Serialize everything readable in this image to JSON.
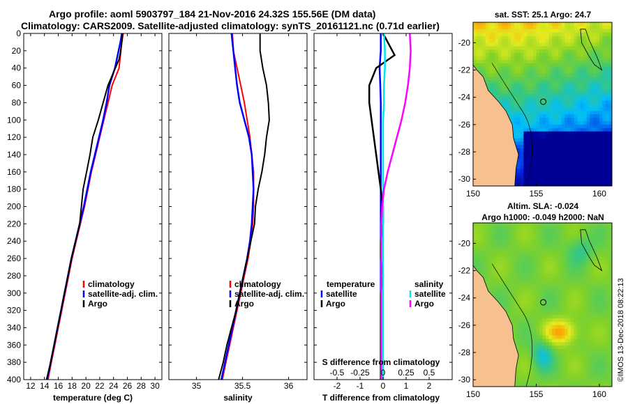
{
  "title_line1": "Argo profile: aoml 5903797_184 21-Nov-2016 24.32S 155.56E (DM data)",
  "title_line2": "Climatology: CARS2009. Satellite-adjusted climatology: synTS_20161121.nc (0.71d earlier)",
  "colors": {
    "climatology": "#ff0000",
    "satellite_adj": "#0000ff",
    "argo": "#000000",
    "sal_satellite": "#00e5ee",
    "sal_argo": "#ff00ff",
    "land": "#f7c08f"
  },
  "chart_data": [
    {
      "type": "line",
      "name": "temperature",
      "xlabel": "temperature (deg C)",
      "ylabel": "",
      "xlim": [
        11,
        31
      ],
      "ylim": [
        400,
        0
      ],
      "xticks": [
        "12",
        "14",
        "16",
        "18",
        "20",
        "22",
        "24",
        "26",
        "28",
        "30"
      ],
      "yticks": [
        "0",
        "20",
        "40",
        "60",
        "80",
        "100",
        "120",
        "140",
        "160",
        "180",
        "200",
        "220",
        "240",
        "260",
        "280",
        "300",
        "320",
        "340",
        "360",
        "380",
        "400"
      ],
      "legend": [
        "climatology",
        "satellite-adj. clim.",
        "Argo"
      ],
      "series": [
        {
          "name": "climatology",
          "x": [
            25.4,
            25.2,
            24.8,
            23.8,
            23.2,
            22.6,
            22.0,
            21.4,
            20.8,
            20.3,
            19.8,
            19.2,
            18.6,
            18.0,
            17.5,
            17.0,
            16.5,
            16.0,
            15.5,
            15.0,
            14.5
          ],
          "y": [
            0,
            10,
            40,
            60,
            80,
            100,
            120,
            140,
            160,
            180,
            200,
            220,
            240,
            260,
            280,
            300,
            320,
            340,
            360,
            380,
            400
          ]
        },
        {
          "name": "satellite-adj. clim.",
          "x": [
            25.2,
            25.0,
            24.2,
            23.4,
            23.0,
            22.5,
            21.9,
            21.3,
            20.7,
            20.2,
            19.7,
            19.1,
            18.5,
            17.9,
            17.4,
            16.9,
            16.4,
            15.9,
            15.4,
            14.9,
            14.4
          ],
          "y": [
            0,
            10,
            40,
            60,
            80,
            100,
            120,
            140,
            160,
            180,
            200,
            220,
            240,
            260,
            280,
            300,
            320,
            340,
            360,
            380,
            400
          ]
        },
        {
          "name": "Argo",
          "x": [
            25.3,
            25.2,
            25.0,
            24.8,
            23.2,
            22.5,
            21.8,
            21.0,
            20.6,
            20.1,
            19.6,
            19.1,
            18.5,
            17.9,
            17.4,
            16.9,
            16.4,
            15.9,
            15.4,
            14.9,
            14.3
          ],
          "y": [
            0,
            10,
            22,
            30,
            60,
            80,
            100,
            120,
            140,
            160,
            180,
            220,
            240,
            260,
            280,
            300,
            320,
            340,
            360,
            380,
            400
          ]
        }
      ]
    },
    {
      "type": "line",
      "name": "salinity",
      "xlabel": "salinity",
      "xlim": [
        34.7,
        36.2
      ],
      "ylim": [
        400,
        0
      ],
      "xticks": [
        "35",
        "35.5",
        "36"
      ],
      "legend": [
        "climatology",
        "satellite-adj. clim.",
        "Argo"
      ],
      "series": [
        {
          "name": "climatology",
          "x": [
            35.39,
            35.4,
            35.44,
            35.48,
            35.52,
            35.55,
            35.58,
            35.6,
            35.62,
            35.62,
            35.62,
            35.61,
            35.59,
            35.56,
            35.52,
            35.48,
            35.44,
            35.4,
            35.36,
            35.32,
            35.28
          ],
          "y": [
            0,
            20,
            40,
            60,
            80,
            100,
            120,
            140,
            160,
            180,
            200,
            220,
            240,
            260,
            280,
            300,
            320,
            340,
            360,
            380,
            400
          ]
        },
        {
          "name": "satellite-adj. clim.",
          "x": [
            35.38,
            35.4,
            35.42,
            35.44,
            35.47,
            35.52,
            35.57,
            35.6,
            35.61,
            35.62,
            35.61,
            35.6,
            35.58,
            35.55,
            35.51,
            35.47,
            35.43,
            35.39,
            35.35,
            35.31,
            35.27
          ],
          "y": [
            0,
            20,
            40,
            60,
            80,
            100,
            120,
            140,
            160,
            180,
            200,
            220,
            240,
            260,
            280,
            300,
            320,
            340,
            360,
            380,
            400
          ]
        },
        {
          "name": "Argo",
          "x": [
            35.69,
            35.69,
            35.72,
            35.76,
            35.78,
            35.79,
            35.76,
            35.74,
            35.71,
            35.67,
            35.64,
            35.63,
            35.59,
            35.55,
            35.51,
            35.47,
            35.43,
            35.38,
            35.33,
            35.29,
            35.24
          ],
          "y": [
            0,
            20,
            40,
            60,
            80,
            100,
            120,
            140,
            160,
            180,
            200,
            220,
            240,
            260,
            280,
            300,
            320,
            340,
            360,
            380,
            400
          ]
        }
      ]
    },
    {
      "type": "line",
      "name": "differences",
      "xlabel": "T difference from climatology",
      "xlabel_s": "S difference from climatology",
      "xlim": [
        -3,
        3
      ],
      "xlim_s": [
        -0.75,
        0.75
      ],
      "ylim": [
        400,
        0
      ],
      "xticks": [
        "-2",
        "-1",
        "0",
        "1",
        "2"
      ],
      "xticks_s": [
        "-0.5",
        "-0.25",
        "0",
        "0.25",
        "0.5"
      ],
      "legend_temperature": {
        "title": "temperature",
        "items": [
          "satellite",
          "Argo"
        ]
      },
      "legend_salinity": {
        "title": "salinity",
        "items": [
          "satellite",
          "Argo"
        ]
      },
      "series": [
        {
          "name": "temperature satellite",
          "x": [
            -0.1,
            -0.1,
            -0.15,
            -0.12,
            -0.1,
            -0.1,
            -0.1,
            -0.1,
            -0.1,
            -0.1,
            -0.1,
            -0.1,
            -0.1,
            -0.1,
            -0.1,
            -0.1,
            -0.1,
            -0.1,
            -0.1,
            -0.1,
            -0.1
          ],
          "y": [
            0,
            20,
            40,
            60,
            80,
            100,
            120,
            140,
            160,
            180,
            200,
            220,
            240,
            260,
            280,
            300,
            320,
            340,
            360,
            380,
            400
          ]
        },
        {
          "name": "temperature Argo",
          "x": [
            0.0,
            0.2,
            0.5,
            -0.3,
            -0.6,
            -0.6,
            -0.5,
            -0.4,
            -0.3,
            -0.2,
            -0.1,
            0.0,
            0.0,
            -0.1,
            -0.1,
            0.0,
            -0.1,
            -0.1,
            -0.1,
            -0.1,
            -0.1
          ],
          "y": [
            0,
            10,
            25,
            40,
            60,
            80,
            100,
            120,
            140,
            160,
            180,
            200,
            220,
            240,
            260,
            280,
            300,
            320,
            340,
            360,
            400
          ]
        },
        {
          "name": "salinity satellite",
          "x": [
            0.01,
            0.02,
            0.02,
            0.01,
            0.01,
            0.0,
            0.0,
            0.0,
            0.0,
            0.0,
            0.0,
            0.0,
            0.0,
            0.0,
            0.0,
            0.0,
            0.0,
            0.0,
            0.0,
            0.0,
            0.0
          ],
          "y": [
            0,
            20,
            40,
            60,
            80,
            100,
            120,
            140,
            160,
            180,
            200,
            220,
            240,
            260,
            280,
            300,
            320,
            340,
            360,
            380,
            400
          ]
        },
        {
          "name": "salinity Argo",
          "x": [
            0.29,
            0.3,
            0.29,
            0.27,
            0.24,
            0.2,
            0.15,
            0.1,
            0.05,
            0.01,
            -0.01,
            -0.02,
            -0.02,
            -0.02,
            -0.02,
            -0.02,
            -0.02,
            -0.02,
            -0.02,
            -0.02,
            -0.02
          ],
          "y": [
            0,
            20,
            40,
            60,
            80,
            100,
            120,
            140,
            160,
            180,
            200,
            220,
            240,
            260,
            280,
            300,
            320,
            340,
            360,
            380,
            400
          ]
        }
      ]
    },
    {
      "type": "heatmap",
      "name": "sst-map",
      "title": "sat. SST: 25.1 Argo: 24.7",
      "xticks": [
        "150",
        "155",
        "160"
      ],
      "yticks": [
        "-20",
        "-22",
        "-24",
        "-26",
        "-28",
        "-30"
      ],
      "xlim": [
        150,
        161
      ],
      "ylim": [
        -30.5,
        -18.5
      ]
    },
    {
      "type": "heatmap",
      "name": "sla-map",
      "title_line1": "Altim. SLA: -0.024",
      "title_line2": "Argo h1000: -0.049 h2000: NaN",
      "xticks": [
        "150",
        "155",
        "160"
      ],
      "yticks": [
        "-20",
        "-22",
        "-24",
        "-26",
        "-28",
        "-30"
      ],
      "xlim": [
        150,
        161
      ],
      "ylim": [
        -30.5,
        -18.5
      ]
    }
  ],
  "credit": "©IMOS 13-Dec-2018 08:22:13"
}
